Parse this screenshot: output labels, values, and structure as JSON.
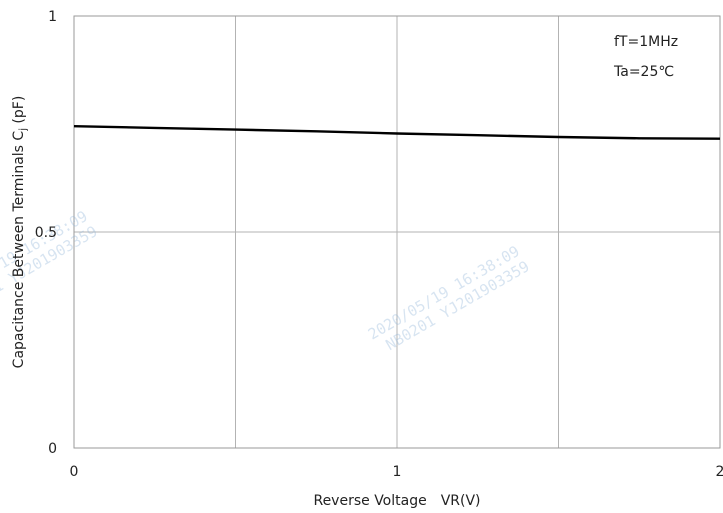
{
  "chart_data": {
    "type": "line",
    "xlabel": "Reverse Voltage　VR(V)",
    "ylabel": "Capacitance Between Terminals C",
    "ylabel_subscript": "j",
    "ylabel_unit": " (pF)",
    "xlim": [
      0,
      2
    ],
    "ylim": [
      0,
      1
    ],
    "x_ticks": [
      0,
      1,
      2
    ],
    "x_tick_labels": [
      "0",
      "1",
      "2"
    ],
    "x_gridlines": [
      0,
      0.5,
      1,
      1.5,
      2
    ],
    "y_ticks": [
      0,
      0.5,
      1
    ],
    "y_tick_labels": [
      "0",
      "0.5",
      "1"
    ],
    "grid": true,
    "annotations": [
      "fT=1MHz",
      "Ta=25℃"
    ],
    "series": [
      {
        "x": [
          0,
          0.25,
          0.5,
          0.75,
          1.0,
          1.25,
          1.5,
          1.75,
          2.0
        ],
        "y": [
          0.745,
          0.741,
          0.737,
          0.733,
          0.728,
          0.724,
          0.72,
          0.717,
          0.716
        ],
        "color": "#000000"
      }
    ]
  },
  "watermarks": [
    {
      "line1": "2020/05/19  16:38:09",
      "line2": "NB0201  YJ201903359"
    },
    {
      "line1": "2020/05/19  16:38:09",
      "line2": "NB0201  YJ201903359"
    }
  ]
}
